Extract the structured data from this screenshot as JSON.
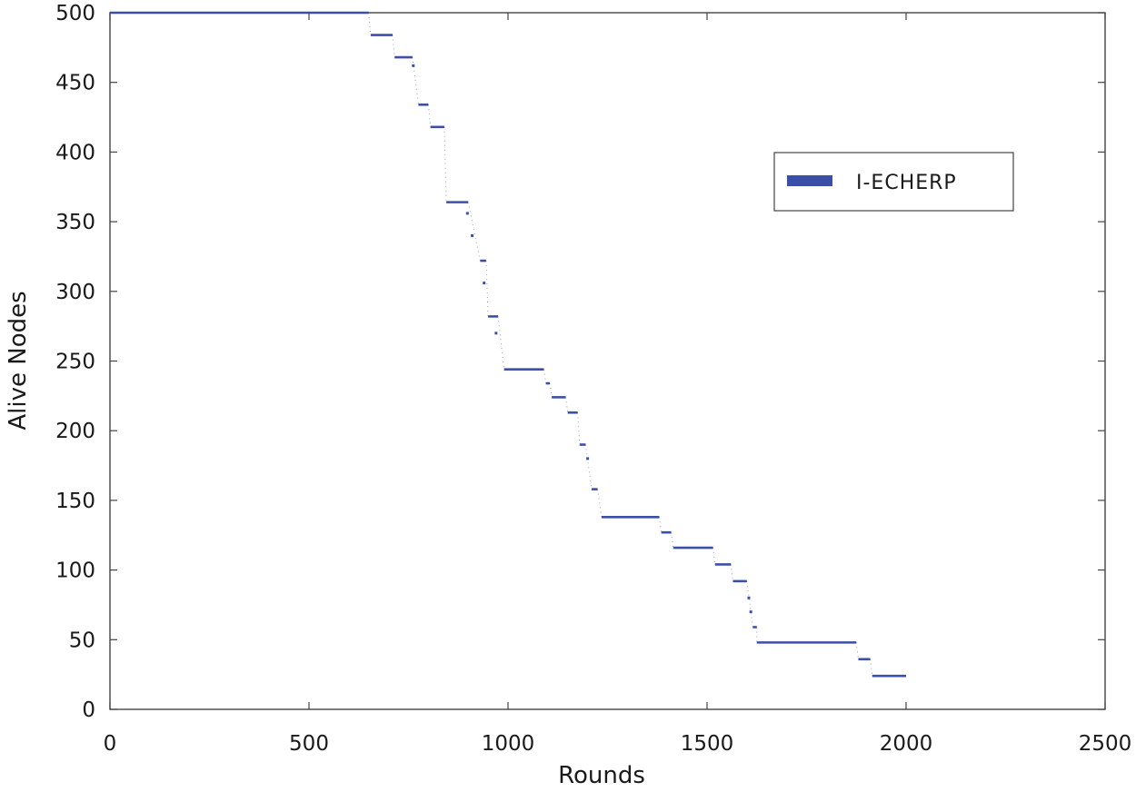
{
  "chart_data": {
    "type": "line",
    "title": "",
    "xlabel": "Rounds",
    "ylabel": "Alive Nodes",
    "xlim": [
      0,
      2500
    ],
    "ylim": [
      0,
      500
    ],
    "xticks": [
      "0",
      "500",
      "1000",
      "1500",
      "2000",
      "2500"
    ],
    "yticks": [
      "0",
      "50",
      "100",
      "150",
      "200",
      "250",
      "300",
      "350",
      "400",
      "450",
      "500"
    ],
    "grid": false,
    "legend_position": "top-right",
    "series": [
      {
        "name": "I-ECHERP",
        "color": "#3b4fa8",
        "style": "step",
        "segments": [
          {
            "x0": 0,
            "x1": 650,
            "y": 500
          },
          {
            "x0": 655,
            "x1": 710,
            "y": 484
          },
          {
            "x0": 715,
            "x1": 760,
            "y": 468
          },
          {
            "x0": 775,
            "x1": 800,
            "y": 434
          },
          {
            "x0": 805,
            "x1": 840,
            "y": 418
          },
          {
            "x0": 845,
            "x1": 900,
            "y": 364
          },
          {
            "x0": 930,
            "x1": 945,
            "y": 322
          },
          {
            "x0": 950,
            "x1": 975,
            "y": 282
          },
          {
            "x0": 990,
            "x1": 1090,
            "y": 244
          },
          {
            "x0": 1095,
            "x1": 1105,
            "y": 234
          },
          {
            "x0": 1110,
            "x1": 1145,
            "y": 224
          },
          {
            "x0": 1150,
            "x1": 1175,
            "y": 213
          },
          {
            "x0": 1180,
            "x1": 1195,
            "y": 190
          },
          {
            "x0": 1210,
            "x1": 1225,
            "y": 158
          },
          {
            "x0": 1235,
            "x1": 1380,
            "y": 138
          },
          {
            "x0": 1385,
            "x1": 1410,
            "y": 127
          },
          {
            "x0": 1415,
            "x1": 1515,
            "y": 116
          },
          {
            "x0": 1520,
            "x1": 1560,
            "y": 104
          },
          {
            "x0": 1565,
            "x1": 1600,
            "y": 92
          },
          {
            "x0": 1615,
            "x1": 1625,
            "y": 59
          },
          {
            "x0": 1625,
            "x1": 1875,
            "y": 48
          },
          {
            "x0": 1880,
            "x1": 1910,
            "y": 36
          },
          {
            "x0": 1915,
            "x1": 2000,
            "y": 24
          }
        ],
        "dots": [
          {
            "x": 762,
            "y": 462
          },
          {
            "x": 898,
            "y": 356
          },
          {
            "x": 910,
            "y": 340
          },
          {
            "x": 940,
            "y": 306
          },
          {
            "x": 970,
            "y": 270
          },
          {
            "x": 1200,
            "y": 180
          },
          {
            "x": 1605,
            "y": 80
          },
          {
            "x": 1610,
            "y": 70
          }
        ]
      }
    ]
  }
}
